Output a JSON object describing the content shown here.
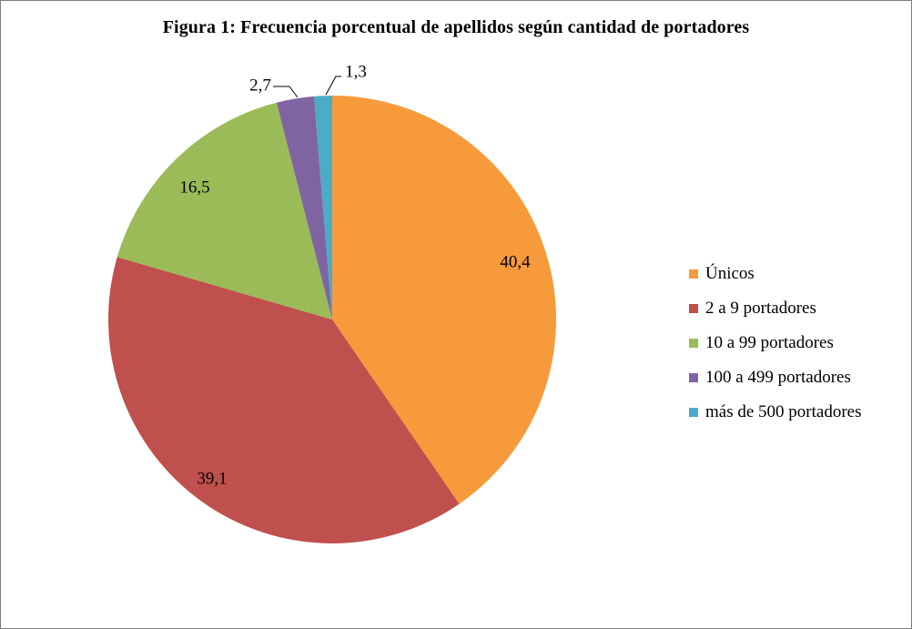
{
  "chart_data": {
    "type": "pie",
    "title": "Figura 1: Frecuencia porcentual de apellidos según cantidad de portadores",
    "categories": [
      "Únicos",
      "2 a 9 portadores",
      "10 a 99 portadores",
      "100 a 499 portadores",
      "más de 500 portadores"
    ],
    "values": [
      40.4,
      39.1,
      16.5,
      2.7,
      1.3
    ],
    "data_labels": [
      "40,4",
      "39,1",
      "16,5",
      "2,7",
      "1,3"
    ],
    "colors": [
      "#F79A3B",
      "#C0504D",
      "#9BBB59",
      "#8064A2",
      "#4BACC6"
    ],
    "legend_position": "right",
    "start_angle": "12 o'clock",
    "direction": "clockwise"
  }
}
